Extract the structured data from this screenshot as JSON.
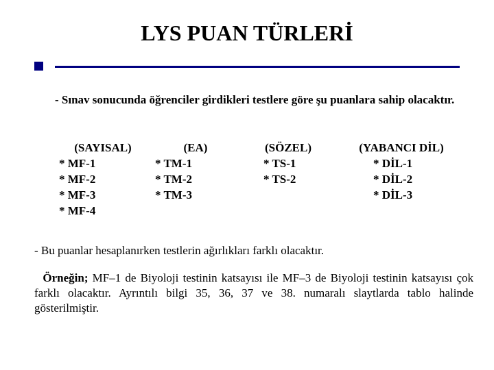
{
  "colors": {
    "accent": "#000080",
    "text": "#000000",
    "background": "#ffffff"
  },
  "typography": {
    "font_family": "Times New Roman",
    "title_fontsize_pt": 24,
    "body_fontsize_pt": 13
  },
  "title": "LYS PUAN TÜRLERİ",
  "intro": "- Sınav sonucunda öğrenciler girdikleri testlere göre şu puanlara sahip olacaktır.",
  "columns": [
    {
      "header": "(SAYISAL)",
      "items": [
        "* MF-1",
        "* MF-2",
        "* MF-3",
        "* MF-4"
      ]
    },
    {
      "header": "(EA)",
      "items": [
        "* TM-1",
        "* TM-2",
        "* TM-3"
      ]
    },
    {
      "header": "(SÖZEL)",
      "items": [
        "* TS-1",
        "* TS-2"
      ]
    },
    {
      "header": "(YABANCI DİL)",
      "items": [
        "* DİL-1",
        "* DİL-2",
        "* DİL-3"
      ]
    }
  ],
  "note1": "- Bu puanlar hesaplanırken testlerin ağırlıkları farklı olacaktır.",
  "note2_bold": "Örneğin;",
  "note2_rest": " MF–1 de Biyoloji testinin katsayısı ile MF–3 de Biyoloji testinin katsayısı çok farklı olacaktır. Ayrıntılı bilgi 35, 36, 37 ve 38. numaralı slaytlarda tablo halinde gösterilmiştir."
}
